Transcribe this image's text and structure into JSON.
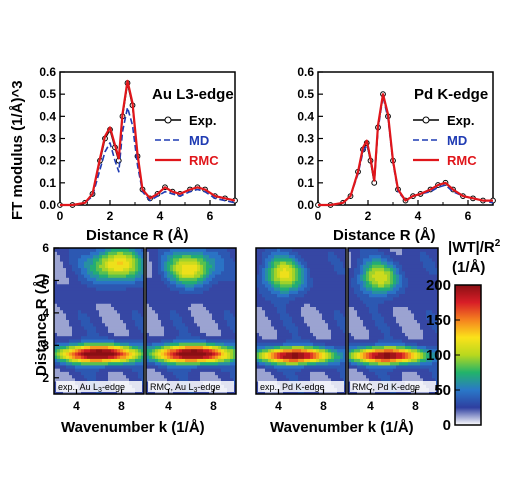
{
  "chart_data": [
    {
      "type": "line",
      "title": "Au L3-edge",
      "xlabel": "Distance R (Å)",
      "ylabel": "FT modulus (1/Å)^3",
      "xlim": [
        0,
        7
      ],
      "ylim": [
        0,
        0.6
      ],
      "xticks": [
        "0",
        "2",
        "4",
        "6"
      ],
      "yticks": [
        "0.0",
        "0.1",
        "0.2",
        "0.3",
        "0.4",
        "0.5",
        "0.6"
      ],
      "legend_position": "top-right",
      "series": [
        {
          "name": "Exp.",
          "color": "#000000",
          "style": "line-open-circles",
          "x": [
            0,
            0.5,
            1.0,
            1.3,
            1.6,
            1.8,
            2.0,
            2.2,
            2.35,
            2.5,
            2.7,
            2.9,
            3.1,
            3.3,
            3.6,
            3.9,
            4.2,
            4.5,
            4.8,
            5.2,
            5.5,
            5.8,
            6.2,
            6.6,
            7.0
          ],
          "y": [
            0.0,
            0.0,
            0.01,
            0.05,
            0.2,
            0.3,
            0.34,
            0.26,
            0.2,
            0.4,
            0.55,
            0.45,
            0.22,
            0.07,
            0.03,
            0.05,
            0.08,
            0.06,
            0.05,
            0.07,
            0.08,
            0.07,
            0.04,
            0.03,
            0.02
          ]
        },
        {
          "name": "MD",
          "color": "#1f3bb3",
          "style": "dashed",
          "x": [
            0,
            0.5,
            1.0,
            1.3,
            1.6,
            1.8,
            2.0,
            2.2,
            2.35,
            2.5,
            2.7,
            2.9,
            3.1,
            3.3,
            3.6,
            3.9,
            4.2,
            4.5,
            4.8,
            5.2,
            5.5,
            5.8,
            6.2,
            6.6,
            7.0
          ],
          "y": [
            0.0,
            0.0,
            0.01,
            0.04,
            0.16,
            0.24,
            0.28,
            0.2,
            0.15,
            0.33,
            0.44,
            0.36,
            0.18,
            0.06,
            0.02,
            0.04,
            0.06,
            0.05,
            0.04,
            0.06,
            0.07,
            0.06,
            0.03,
            0.02,
            0.01
          ]
        },
        {
          "name": "RMC",
          "color": "#e0161b",
          "style": "solid",
          "x": [
            0,
            0.5,
            1.0,
            1.3,
            1.6,
            1.8,
            2.0,
            2.2,
            2.35,
            2.5,
            2.7,
            2.9,
            3.1,
            3.3,
            3.6,
            3.9,
            4.2,
            4.5,
            4.8,
            5.2,
            5.5,
            5.8,
            6.2,
            6.6,
            7.0
          ],
          "y": [
            0.0,
            0.0,
            0.01,
            0.05,
            0.21,
            0.31,
            0.35,
            0.27,
            0.21,
            0.41,
            0.56,
            0.46,
            0.23,
            0.07,
            0.03,
            0.05,
            0.08,
            0.06,
            0.05,
            0.07,
            0.08,
            0.07,
            0.04,
            0.03,
            0.02
          ]
        }
      ]
    },
    {
      "type": "line",
      "title": "Pd K-edge",
      "xlabel": "Distance R (Å)",
      "ylabel": "",
      "xlim": [
        0,
        7
      ],
      "ylim": [
        0,
        0.6
      ],
      "xticks": [
        "0",
        "2",
        "4",
        "6"
      ],
      "yticks": [
        "0.0",
        "0.1",
        "0.2",
        "0.3",
        "0.4",
        "0.5",
        "0.6"
      ],
      "legend_position": "top-right",
      "series": [
        {
          "name": "Exp.",
          "color": "#000000",
          "style": "line-open-circles",
          "x": [
            0,
            0.5,
            1.0,
            1.3,
            1.6,
            1.8,
            1.95,
            2.1,
            2.25,
            2.4,
            2.6,
            2.8,
            3.0,
            3.2,
            3.5,
            3.8,
            4.1,
            4.5,
            4.8,
            5.1,
            5.4,
            5.8,
            6.2,
            6.6,
            7.0
          ],
          "y": [
            0.0,
            0.0,
            0.01,
            0.04,
            0.15,
            0.25,
            0.28,
            0.2,
            0.1,
            0.35,
            0.5,
            0.4,
            0.2,
            0.07,
            0.02,
            0.04,
            0.05,
            0.07,
            0.09,
            0.1,
            0.07,
            0.04,
            0.03,
            0.02,
            0.02
          ]
        },
        {
          "name": "MD",
          "color": "#1f3bb3",
          "style": "dashed",
          "x": [
            0,
            0.5,
            1.0,
            1.3,
            1.6,
            1.8,
            1.95,
            2.1,
            2.25,
            2.4,
            2.6,
            2.8,
            3.0,
            3.2,
            3.5,
            3.8,
            4.1,
            4.5,
            4.8,
            5.1,
            5.4,
            5.8,
            6.2,
            6.6,
            7.0
          ],
          "y": [
            0.0,
            0.0,
            0.01,
            0.04,
            0.14,
            0.24,
            0.27,
            0.21,
            0.12,
            0.34,
            0.49,
            0.39,
            0.19,
            0.06,
            0.02,
            0.04,
            0.05,
            0.06,
            0.08,
            0.09,
            0.06,
            0.04,
            0.03,
            0.02,
            0.01
          ]
        },
        {
          "name": "RMC",
          "color": "#e0161b",
          "style": "solid",
          "x": [
            0,
            0.5,
            1.0,
            1.3,
            1.6,
            1.8,
            1.95,
            2.1,
            2.25,
            2.4,
            2.6,
            2.8,
            3.0,
            3.2,
            3.5,
            3.8,
            4.1,
            4.5,
            4.8,
            5.1,
            5.4,
            5.8,
            6.2,
            6.6,
            7.0
          ],
          "y": [
            0.0,
            0.0,
            0.01,
            0.04,
            0.15,
            0.26,
            0.29,
            0.21,
            0.11,
            0.36,
            0.5,
            0.41,
            0.2,
            0.07,
            0.02,
            0.04,
            0.05,
            0.07,
            0.09,
            0.1,
            0.07,
            0.04,
            0.03,
            0.02,
            0.02
          ]
        }
      ]
    },
    {
      "type": "heatmap",
      "ylabel": "Distance R (Å)",
      "xlabel": "Wavenumber k (1/Å)",
      "xlim": [
        2,
        10
      ],
      "ylim": [
        1.5,
        6
      ],
      "xticks": [
        "4",
        "8"
      ],
      "yticks": [
        "2",
        "3",
        "4",
        "5",
        "6"
      ],
      "panels": [
        {
          "caption": "exp., Au L",
          "caption_sub": "3",
          "caption_end": "-edge",
          "blobs": [
            {
              "k": 6,
              "R": 2.75,
              "v": 200,
              "wk": 3.5,
              "wR": 0.28
            },
            {
              "k": 7.5,
              "R": 5.5,
              "v": 110,
              "wk": 2.2,
              "wR": 0.5
            }
          ]
        },
        {
          "caption": "RMC, Au L",
          "caption_sub": "3",
          "caption_end": "-edge",
          "blobs": [
            {
              "k": 6.2,
              "R": 2.75,
              "v": 200,
              "wk": 3.5,
              "wR": 0.28
            },
            {
              "k": 6,
              "R": 5.4,
              "v": 105,
              "wk": 2.0,
              "wR": 0.5
            }
          ]
        },
        {
          "caption": "exp., Pd K-edge",
          "caption_sub": "",
          "caption_end": "",
          "blobs": [
            {
              "k": 5.5,
              "R": 2.7,
              "v": 185,
              "wk": 3.2,
              "wR": 0.25
            },
            {
              "k": 4.5,
              "R": 5.2,
              "v": 90,
              "wk": 1.8,
              "wR": 0.55
            }
          ]
        },
        {
          "caption": "RMC, Pd K-edge",
          "caption_sub": "",
          "caption_end": "",
          "blobs": [
            {
              "k": 5.5,
              "R": 2.7,
              "v": 185,
              "wk": 3.2,
              "wR": 0.25
            },
            {
              "k": 4.8,
              "R": 5.1,
              "v": 85,
              "wk": 1.8,
              "wR": 0.5
            }
          ]
        }
      ],
      "colorbar": {
        "title_line1": "|WT|/R",
        "title_sup": "2",
        "title_line2": "(1/Å)",
        "ticks": [
          "0",
          "50",
          "100",
          "150",
          "200"
        ],
        "range": [
          0,
          200
        ],
        "colors": [
          "#ffffff",
          "#2e3fa0",
          "#2a78c8",
          "#22b36a",
          "#b8d81e",
          "#fbe21a",
          "#f5821f",
          "#d81e27",
          "#8a0f14"
        ]
      }
    }
  ]
}
